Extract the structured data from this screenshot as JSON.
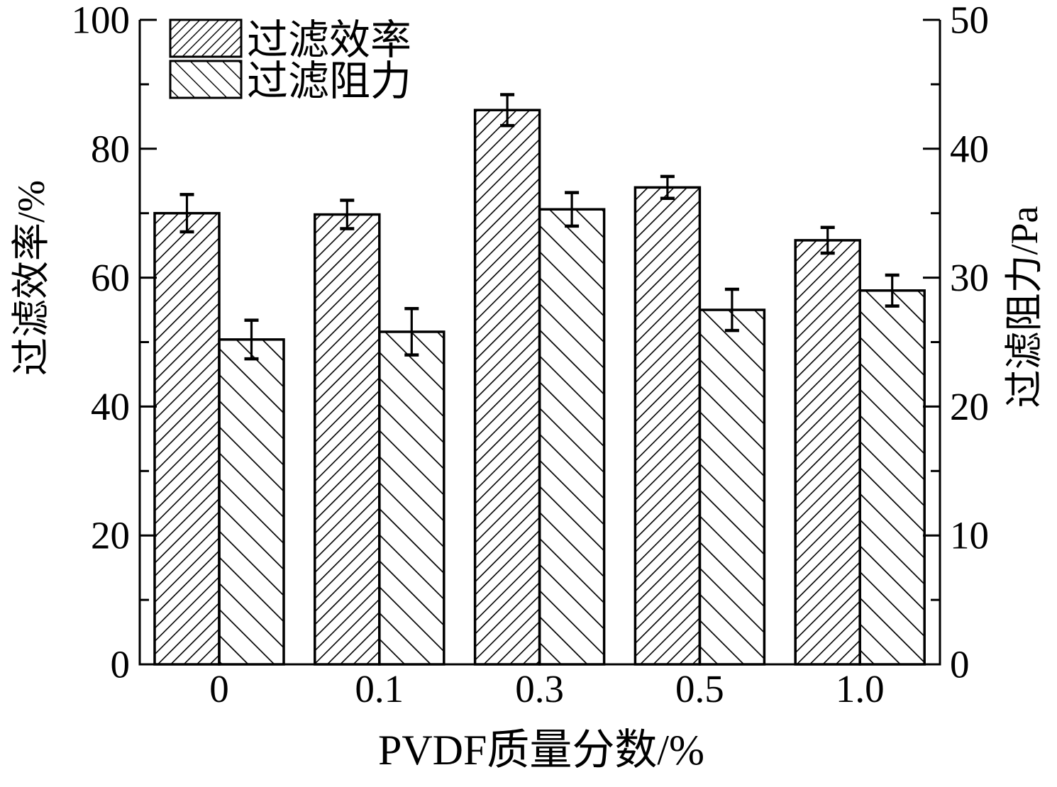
{
  "chart_data": {
    "type": "bar",
    "categories": [
      "0",
      "0.1",
      "0.3",
      "0.5",
      "1.0"
    ],
    "xlabel": "PVDF质量分数/%",
    "ylabel_left": "过滤效率/%",
    "ylabel_right": "过滤阻力/Pa",
    "left_axis": {
      "min": 0,
      "max": 100,
      "major_ticks": [
        0,
        20,
        40,
        60,
        80,
        100
      ],
      "minor_ticks": [
        10,
        30,
        50,
        70,
        90
      ]
    },
    "right_axis": {
      "min": 0,
      "max": 50,
      "major_ticks": [
        0,
        10,
        20,
        30,
        40,
        50
      ],
      "minor_ticks": [
        5,
        15,
        25,
        35,
        45
      ]
    },
    "series": [
      {
        "name": "过滤效率",
        "axis": "left",
        "hatch": "forward-diagonal",
        "values": [
          70.0,
          69.8,
          86.0,
          74.0,
          65.8
        ],
        "errors": [
          2.9,
          2.2,
          2.4,
          1.7,
          2.0
        ]
      },
      {
        "name": "过滤阻力",
        "axis": "right",
        "hatch": "backward-diagonal",
        "values": [
          25.2,
          25.8,
          35.3,
          27.5,
          29.0
        ],
        "errors": [
          1.5,
          1.8,
          1.3,
          1.6,
          1.2
        ]
      }
    ],
    "legend_position": "top-left-inside",
    "grid": false,
    "error_bars": true,
    "colors": {
      "foreground": "#000000",
      "background": "#ffffff"
    }
  }
}
